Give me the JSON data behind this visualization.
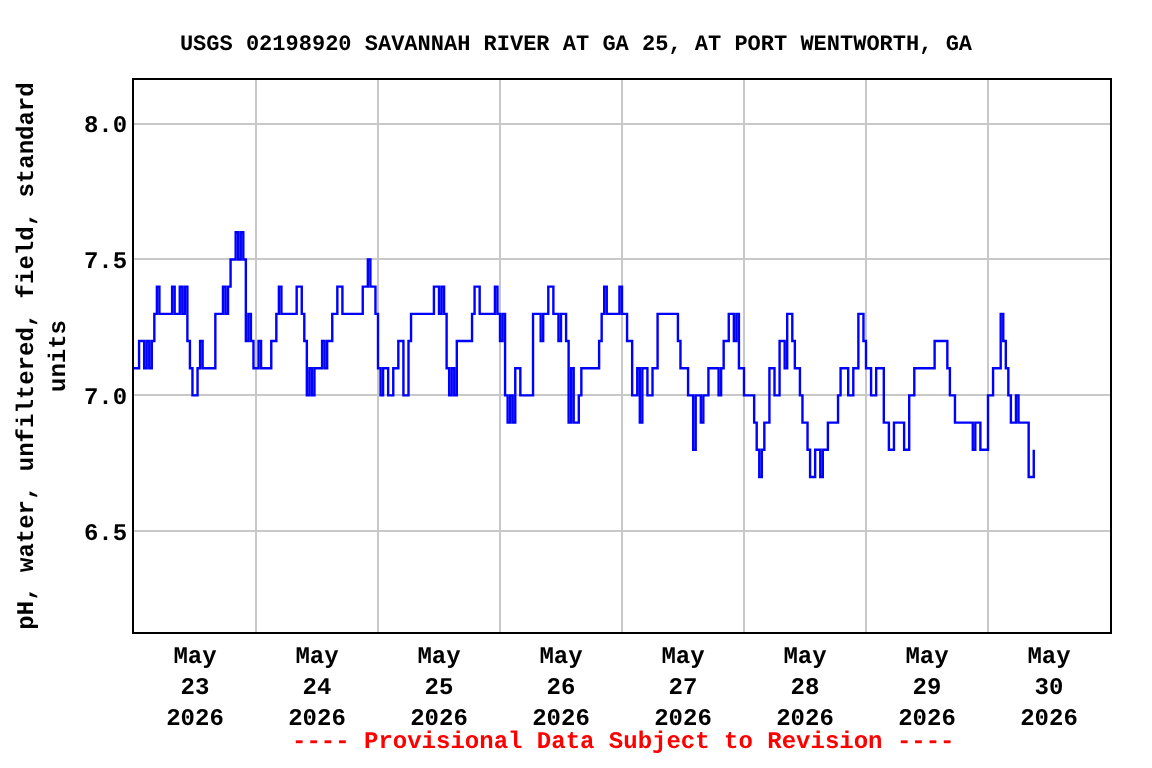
{
  "chart_data": {
    "type": "step",
    "title": "USGS 02198920 SAVANNAH RIVER AT GA 25, AT PORT WENTWORTH, GA",
    "ylabel": "pH, water, unfiltered, field, standard units",
    "annotations": [
      "---- Provisional Data Subject to Revision ----"
    ],
    "xlim": [
      "2026-05-23T00:00",
      "2026-05-31T00:00"
    ],
    "xticks": [
      {
        "value": "2026-05-23T12:00",
        "label": "May\n23\n2026"
      },
      {
        "value": "2026-05-24T12:00",
        "label": "May\n24\n2026"
      },
      {
        "value": "2026-05-25T12:00",
        "label": "May\n25\n2026"
      },
      {
        "value": "2026-05-26T12:00",
        "label": "May\n26\n2026"
      },
      {
        "value": "2026-05-27T12:00",
        "label": "May\n27\n2026"
      },
      {
        "value": "2026-05-28T12:00",
        "label": "May\n28\n2026"
      },
      {
        "value": "2026-05-29T12:00",
        "label": "May\n29\n2026"
      },
      {
        "value": "2026-05-30T12:00",
        "label": "May\n30\n2026"
      },
      {
        "value": "2026-05-24T00:00",
        "label": null
      },
      {
        "value": "2026-05-25T00:00",
        "label": null
      },
      {
        "value": "2026-05-26T00:00",
        "label": null
      },
      {
        "value": "2026-05-27T00:00",
        "label": null
      },
      {
        "value": "2026-05-28T00:00",
        "label": null
      },
      {
        "value": "2026-05-29T00:00",
        "label": null
      },
      {
        "value": "2026-05-30T00:00",
        "label": null
      }
    ],
    "ylim": [
      6.13,
      8.16
    ],
    "yticks": [
      {
        "value": 6.5,
        "label": "6.5"
      },
      {
        "value": 7.0,
        "label": "7.0"
      },
      {
        "value": 7.5,
        "label": "7.5"
      },
      {
        "value": 8.0,
        "label": "8.0"
      }
    ],
    "grid": true,
    "series": [
      {
        "color": "#0000ff",
        "x": [
          "2026-05-23T00:00",
          "2026-05-23T01:00",
          "2026-05-23T02:00",
          "2026-05-23T02:30",
          "2026-05-23T03:00",
          "2026-05-23T03:30",
          "2026-05-23T04:00",
          "2026-05-23T04:30",
          "2026-05-23T05:00",
          "2026-05-23T07:30",
          "2026-05-23T08:00",
          "2026-05-23T09:00",
          "2026-05-23T09:30",
          "2026-05-23T10:00",
          "2026-05-23T10:30",
          "2026-05-23T11:00",
          "2026-05-23T11:30",
          "2026-05-23T12:30",
          "2026-05-23T13:00",
          "2026-05-23T13:30",
          "2026-05-23T16:00",
          "2026-05-23T17:30",
          "2026-05-23T18:00",
          "2026-05-23T18:30",
          "2026-05-23T19:00",
          "2026-05-23T20:00",
          "2026-05-23T20:30",
          "2026-05-23T21:00",
          "2026-05-23T21:30",
          "2026-05-23T22:00",
          "2026-05-23T22:30",
          "2026-05-23T23:00",
          "2026-05-23T23:30",
          "2026-05-24T00:30",
          "2026-05-24T01:00",
          "2026-05-24T03:00",
          "2026-05-24T04:00",
          "2026-05-24T04:30",
          "2026-05-24T05:00",
          "2026-05-24T08:00",
          "2026-05-24T09:00",
          "2026-05-24T09:30",
          "2026-05-24T10:00",
          "2026-05-24T10:30",
          "2026-05-24T11:00",
          "2026-05-24T11:30",
          "2026-05-24T13:00",
          "2026-05-24T13:30",
          "2026-05-24T14:00",
          "2026-05-24T15:00",
          "2026-05-24T16:00",
          "2026-05-24T17:00",
          "2026-05-24T21:00",
          "2026-05-24T22:00",
          "2026-05-24T22:30",
          "2026-05-24T23:30",
          "2026-05-25T00:00",
          "2026-05-25T00:30",
          "2026-05-25T01:00",
          "2026-05-25T02:00",
          "2026-05-25T03:00",
          "2026-05-25T04:00",
          "2026-05-25T05:00",
          "2026-05-25T06:00",
          "2026-05-25T06:30",
          "2026-05-25T11:00",
          "2026-05-25T12:00",
          "2026-05-25T12:30",
          "2026-05-25T13:00",
          "2026-05-25T13:30",
          "2026-05-25T14:00",
          "2026-05-25T14:30",
          "2026-05-25T15:00",
          "2026-05-25T15:30",
          "2026-05-25T18:30",
          "2026-05-25T19:00",
          "2026-05-25T20:00",
          "2026-05-25T23:00",
          "2026-05-25T23:30",
          "2026-05-26T00:00",
          "2026-05-26T00:30",
          "2026-05-26T01:00",
          "2026-05-26T01:30",
          "2026-05-26T02:00",
          "2026-05-26T02:30",
          "2026-05-26T03:00",
          "2026-05-26T04:00",
          "2026-05-26T06:30",
          "2026-05-26T08:00",
          "2026-05-26T08:30",
          "2026-05-26T09:30",
          "2026-05-26T10:30",
          "2026-05-26T11:30",
          "2026-05-26T12:00",
          "2026-05-26T13:00",
          "2026-05-26T13:30",
          "2026-05-26T14:00",
          "2026-05-26T14:30",
          "2026-05-26T15:30",
          "2026-05-26T16:00",
          "2026-05-26T19:30",
          "2026-05-26T20:00",
          "2026-05-26T20:30",
          "2026-05-26T21:00",
          "2026-05-26T23:30",
          "2026-05-27T00:00",
          "2026-05-27T01:00",
          "2026-05-27T02:00",
          "2026-05-27T03:00",
          "2026-05-27T03:30",
          "2026-05-27T04:00",
          "2026-05-27T05:00",
          "2026-05-27T06:00",
          "2026-05-27T07:00",
          "2026-05-27T11:00",
          "2026-05-27T11:30",
          "2026-05-27T13:00",
          "2026-05-27T14:00",
          "2026-05-27T14:30",
          "2026-05-27T15:30",
          "2026-05-27T16:00",
          "2026-05-27T17:00",
          "2026-05-27T19:00",
          "2026-05-27T19:30",
          "2026-05-27T20:00",
          "2026-05-27T21:00",
          "2026-05-27T22:00",
          "2026-05-27T22:30",
          "2026-05-27T23:00",
          "2026-05-28T00:00",
          "2026-05-28T02:00",
          "2026-05-28T02:30",
          "2026-05-28T03:00",
          "2026-05-28T03:30",
          "2026-05-28T04:00",
          "2026-05-28T05:00",
          "2026-05-28T06:00",
          "2026-05-28T07:00",
          "2026-05-28T08:00",
          "2026-05-28T08:30",
          "2026-05-28T09:30",
          "2026-05-28T10:00",
          "2026-05-28T11:00",
          "2026-05-28T11:30",
          "2026-05-28T12:30",
          "2026-05-28T13:00",
          "2026-05-28T14:00",
          "2026-05-28T15:00",
          "2026-05-28T15:30",
          "2026-05-28T16:30",
          "2026-05-28T18:30",
          "2026-05-28T19:00",
          "2026-05-28T20:30",
          "2026-05-28T21:30",
          "2026-05-28T22:30",
          "2026-05-28T23:30",
          "2026-05-29T00:00",
          "2026-05-29T01:00",
          "2026-05-29T02:00",
          "2026-05-29T03:30",
          "2026-05-29T04:30",
          "2026-05-29T05:30",
          "2026-05-29T07:30",
          "2026-05-29T08:30",
          "2026-05-29T09:30",
          "2026-05-29T13:30",
          "2026-05-29T16:00",
          "2026-05-29T16:30",
          "2026-05-29T17:30",
          "2026-05-29T21:00",
          "2026-05-29T21:30",
          "2026-05-29T22:30",
          "2026-05-30T00:00",
          "2026-05-30T01:00",
          "2026-05-30T02:30",
          "2026-05-30T03:00",
          "2026-05-30T03:30",
          "2026-05-30T04:00",
          "2026-05-30T04:30",
          "2026-05-30T05:30",
          "2026-05-30T06:00",
          "2026-05-30T08:00",
          "2026-05-30T09:00"
        ],
        "values": [
          7.1,
          7.2,
          7.1,
          7.2,
          7.1,
          7.2,
          7.3,
          7.4,
          7.3,
          7.4,
          7.3,
          7.4,
          7.3,
          7.4,
          7.2,
          7.1,
          7.0,
          7.1,
          7.2,
          7.1,
          7.3,
          7.4,
          7.3,
          7.4,
          7.5,
          7.6,
          7.5,
          7.6,
          7.5,
          7.2,
          7.3,
          7.2,
          7.1,
          7.2,
          7.1,
          7.2,
          7.3,
          7.4,
          7.3,
          7.4,
          7.3,
          7.2,
          7.0,
          7.1,
          7.0,
          7.1,
          7.2,
          7.1,
          7.2,
          7.3,
          7.4,
          7.3,
          7.4,
          7.5,
          7.4,
          7.3,
          7.1,
          7.0,
          7.1,
          7.0,
          7.1,
          7.2,
          7.0,
          7.2,
          7.3,
          7.4,
          7.3,
          7.4,
          7.3,
          7.1,
          7.0,
          7.1,
          7.0,
          7.2,
          7.3,
          7.4,
          7.3,
          7.4,
          7.3,
          7.2,
          7.3,
          7.0,
          6.9,
          7.0,
          6.9,
          7.1,
          7.0,
          7.3,
          7.2,
          7.3,
          7.4,
          7.3,
          7.2,
          7.3,
          7.2,
          6.9,
          7.1,
          6.9,
          7.0,
          7.1,
          7.2,
          7.3,
          7.4,
          7.3,
          7.4,
          7.3,
          7.2,
          7.0,
          7.1,
          6.9,
          7.1,
          7.0,
          7.1,
          7.3,
          7.2,
          7.1,
          7.0,
          6.8,
          7.0,
          6.9,
          7.0,
          7.1,
          7.0,
          7.1,
          7.2,
          7.3,
          7.2,
          7.3,
          7.1,
          7.0,
          6.9,
          6.8,
          6.7,
          6.8,
          6.9,
          7.1,
          7.0,
          7.2,
          7.1,
          7.3,
          7.2,
          7.1,
          7.0,
          6.9,
          6.8,
          6.7,
          6.8,
          6.7,
          6.8,
          6.9,
          7.0,
          7.1,
          7.0,
          7.1,
          7.3,
          7.2,
          7.1,
          7.0,
          7.1,
          6.9,
          6.8,
          6.9,
          6.8,
          7.0,
          7.1,
          7.2,
          7.1,
          7.0,
          6.9,
          6.8,
          6.9,
          6.8,
          7.0,
          7.1,
          7.3,
          7.2,
          7.1,
          7.0,
          6.9,
          7.0,
          6.9,
          6.7,
          6.8
        ]
      }
    ]
  }
}
